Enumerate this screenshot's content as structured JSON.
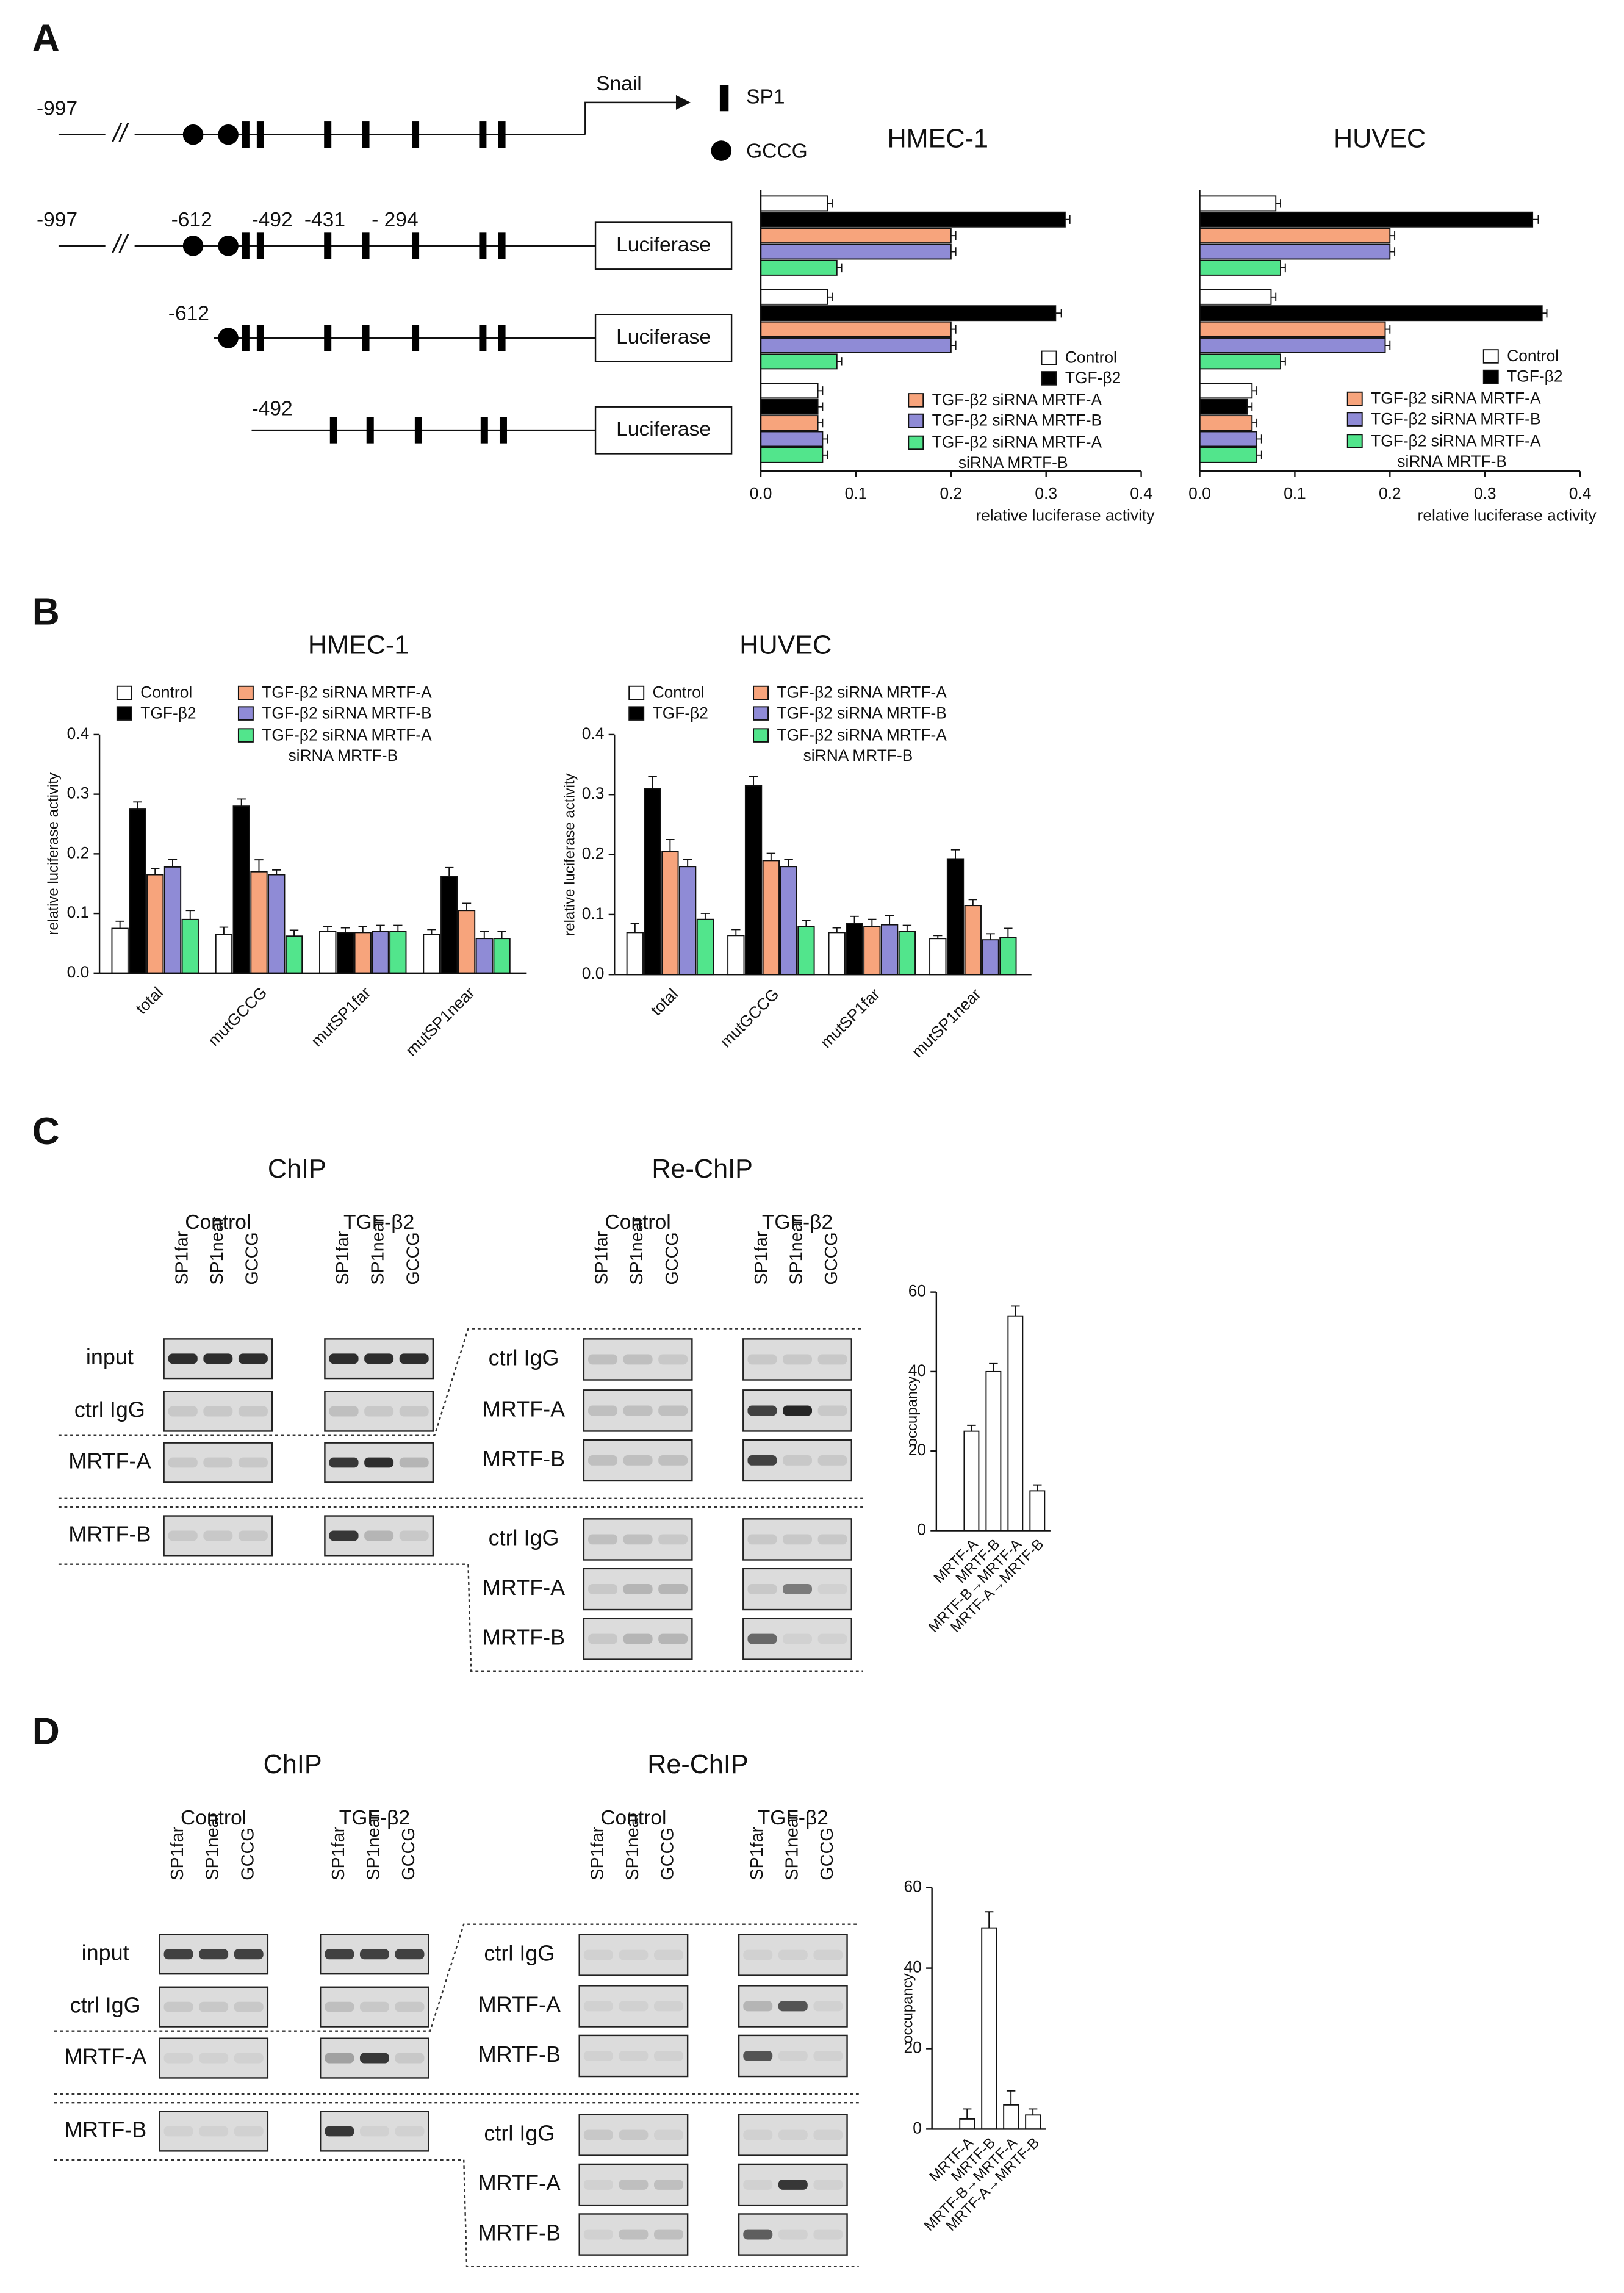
{
  "panels": [
    "A",
    "B",
    "C",
    "D"
  ],
  "promoter": {
    "gene": "Snail",
    "sp1": "SP1",
    "gccg": "GCCG",
    "reporter": "Luciferase",
    "break": "//",
    "positions": [
      "-997",
      "-612",
      "-492",
      "-431",
      "- 294"
    ]
  },
  "gels": [
    {
      "chip": "ChIP",
      "rechip": "Re-ChIP",
      "conditions": [
        "Control",
        "TGF-β2"
      ],
      "lanes": [
        "SP1far",
        "SP1near",
        "GCCG"
      ],
      "chip_rows": [
        "input",
        "ctrl IgG",
        "MRTF-A",
        "MRTF-B"
      ],
      "rechip_rows": [
        "ctrl IgG",
        "MRTF-A",
        "MRTF-B"
      ]
    },
    {
      "chip": "ChIP",
      "rechip": "Re-ChIP",
      "conditions": [
        "Control",
        "TGF-β2"
      ],
      "lanes": [
        "SP1far",
        "SP1near",
        "GCCG"
      ],
      "chip_rows": [
        "input",
        "ctrl IgG",
        "MRTF-A",
        "MRTF-B"
      ],
      "rechip_rows": [
        "ctrl IgG",
        "MRTF-A",
        "MRTF-B"
      ]
    }
  ],
  "chart_data": [
    {
      "type": "barh",
      "title": "HMEC-1",
      "categories": [
        null,
        null,
        null
      ],
      "xlabel": "relative luciferase activity",
      "xlim": [
        0,
        0.4
      ],
      "xticks": [
        {
          "value": 0,
          "label": "0.0"
        },
        0.1,
        0.2,
        0.3,
        0.4
      ],
      "legend": "lower right",
      "series": [
        {
          "name": "Control",
          "color": "#ffffff",
          "values": [
            0.07,
            0.07,
            0.06
          ],
          "errors": [
            0.005,
            0.005,
            0.005
          ]
        },
        {
          "name": "TGF-β2",
          "color": "#000000",
          "values": [
            0.32,
            0.31,
            0.06
          ],
          "errors": [
            0.005,
            0.006,
            0.005
          ]
        },
        {
          "name": "TGF-β2 siRNA MRTF-A",
          "color": "#f7a47c",
          "values": [
            0.2,
            0.2,
            0.06
          ],
          "errors": [
            0.005,
            0.005,
            0.005
          ]
        },
        {
          "name": "TGF-β2 siRNA MRTF-B",
          "color": "#8f8bd6",
          "values": [
            0.2,
            0.2,
            0.065
          ],
          "errors": [
            0.005,
            0.005,
            0.005
          ]
        },
        {
          "name": "TGF-β2 siRNA MRTF-A siRNA MRTF-B",
          "color": "#52e58c",
          "values": [
            0.08,
            0.08,
            0.065
          ],
          "errors": [
            0.005,
            0.005,
            0.005
          ]
        }
      ]
    },
    {
      "type": "barh",
      "title": "HUVEC",
      "categories": [
        null,
        null,
        null
      ],
      "xlabel": "relative luciferase activity",
      "xlim": [
        0,
        0.4
      ],
      "xticks": [
        {
          "value": 0,
          "label": "0.0"
        },
        0.1,
        0.2,
        0.3,
        0.4
      ],
      "legend": "lower right",
      "series": [
        {
          "name": "Control",
          "color": "#ffffff",
          "values": [
            0.08,
            0.075,
            0.055
          ],
          "errors": [
            0.005,
            0.005,
            0.005
          ]
        },
        {
          "name": "TGF-β2",
          "color": "#000000",
          "values": [
            0.35,
            0.36,
            0.05
          ],
          "errors": [
            0.006,
            0.005,
            0.005
          ]
        },
        {
          "name": "TGF-β2 siRNA MRTF-A",
          "color": "#f7a47c",
          "values": [
            0.2,
            0.195,
            0.055
          ],
          "errors": [
            0.005,
            0.005,
            0.005
          ]
        },
        {
          "name": "TGF-β2 siRNA MRTF-B",
          "color": "#8f8bd6",
          "values": [
            0.2,
            0.195,
            0.06
          ],
          "errors": [
            0.005,
            0.005,
            0.005
          ]
        },
        {
          "name": "TGF-β2 siRNA MRTF-A siRNA MRTF-B",
          "color": "#52e58c",
          "values": [
            0.085,
            0.085,
            0.06
          ],
          "errors": [
            0.005,
            0.005,
            0.005
          ]
        }
      ]
    },
    {
      "type": "bar",
      "title": "HMEC-1",
      "categories": [
        "total",
        "mutGCCG",
        "mutSP1far",
        "mutSP1near"
      ],
      "ylabel": "relative luciferase activity",
      "ylim": [
        0,
        0.4
      ],
      "yticks": [
        {
          "value": 0,
          "label": "0.0"
        },
        0.1,
        0.2,
        0.3,
        0.4
      ],
      "legend": "upper left",
      "series": [
        {
          "name": "Control",
          "color": "#ffffff",
          "values": [
            0.075,
            0.065,
            0.07,
            0.065
          ],
          "errors": [
            0.012,
            0.012,
            0.008,
            0.008
          ]
        },
        {
          "name": "TGF-β2",
          "color": "#000000",
          "values": [
            0.275,
            0.28,
            0.068,
            0.162
          ],
          "errors": [
            0.012,
            0.012,
            0.008,
            0.015
          ]
        },
        {
          "name": "TGF-β2 siRNA MRTF-A",
          "color": "#f7a47c",
          "values": [
            0.165,
            0.17,
            0.068,
            0.105
          ],
          "errors": [
            0.01,
            0.02,
            0.01,
            0.012
          ]
        },
        {
          "name": "TGF-β2 siRNA MRTF-B",
          "color": "#8f8bd6",
          "values": [
            0.178,
            0.165,
            0.07,
            0.058
          ],
          "errors": [
            0.013,
            0.008,
            0.01,
            0.012
          ]
        },
        {
          "name": "TGF-β2 siRNA MRTF-A siRNA MRTF-B",
          "color": "#52e58c",
          "values": [
            0.09,
            0.062,
            0.07,
            0.058
          ],
          "errors": [
            0.015,
            0.01,
            0.01,
            0.012
          ]
        }
      ]
    },
    {
      "type": "bar",
      "title": "HUVEC",
      "categories": [
        "total",
        "mutGCCG",
        "mutSP1far",
        "mutSP1near"
      ],
      "ylabel": "relative luciferase activity",
      "ylim": [
        0,
        0.4
      ],
      "yticks": [
        {
          "value": 0,
          "label": "0.0"
        },
        0.1,
        0.2,
        0.3,
        0.4
      ],
      "legend": "upper left",
      "series": [
        {
          "name": "Control",
          "color": "#ffffff",
          "values": [
            0.07,
            0.065,
            0.07,
            0.06
          ],
          "errors": [
            0.015,
            0.01,
            0.008,
            0.005
          ]
        },
        {
          "name": "TGF-β2",
          "color": "#000000",
          "values": [
            0.31,
            0.315,
            0.085,
            0.193
          ],
          "errors": [
            0.02,
            0.015,
            0.012,
            0.015
          ]
        },
        {
          "name": "TGF-β2 siRNA MRTF-A",
          "color": "#f7a47c",
          "values": [
            0.205,
            0.19,
            0.08,
            0.115
          ],
          "errors": [
            0.02,
            0.012,
            0.012,
            0.01
          ]
        },
        {
          "name": "TGF-β2 siRNA MRTF-B",
          "color": "#8f8bd6",
          "values": [
            0.18,
            0.18,
            0.083,
            0.058
          ],
          "errors": [
            0.012,
            0.012,
            0.015,
            0.01
          ]
        },
        {
          "name": "TGF-β2 siRNA MRTF-A siRNA MRTF-B",
          "color": "#52e58c",
          "values": [
            0.092,
            0.08,
            0.072,
            0.062
          ],
          "errors": [
            0.01,
            0.01,
            0.01,
            0.015
          ]
        }
      ]
    },
    {
      "type": "bar",
      "categories": [
        "MRTF-A",
        "MRTF-B",
        "MRTF-B→MRTF-A",
        "MRTF-A→MRTF-B"
      ],
      "ylabel": "occupancy",
      "ylim": [
        0,
        60
      ],
      "yticks": [
        0,
        20,
        40,
        60
      ],
      "color": "#ffffff",
      "values": [
        25,
        40,
        54,
        10
      ],
      "errors": [
        1.5,
        2,
        2.5,
        1.5
      ]
    },
    {
      "type": "bar",
      "categories": [
        "MRTF-A",
        "MRTF-B",
        "MRTF-B→MRTF-A",
        "MRTF-A→MRTF-B"
      ],
      "ylabel": "occupancy",
      "ylim": [
        0,
        60
      ],
      "yticks": [
        0,
        20,
        40,
        60
      ],
      "color": "#ffffff",
      "values": [
        2.5,
        50,
        6,
        3.5
      ],
      "errors": [
        2.5,
        4,
        3.5,
        1.5
      ]
    }
  ]
}
